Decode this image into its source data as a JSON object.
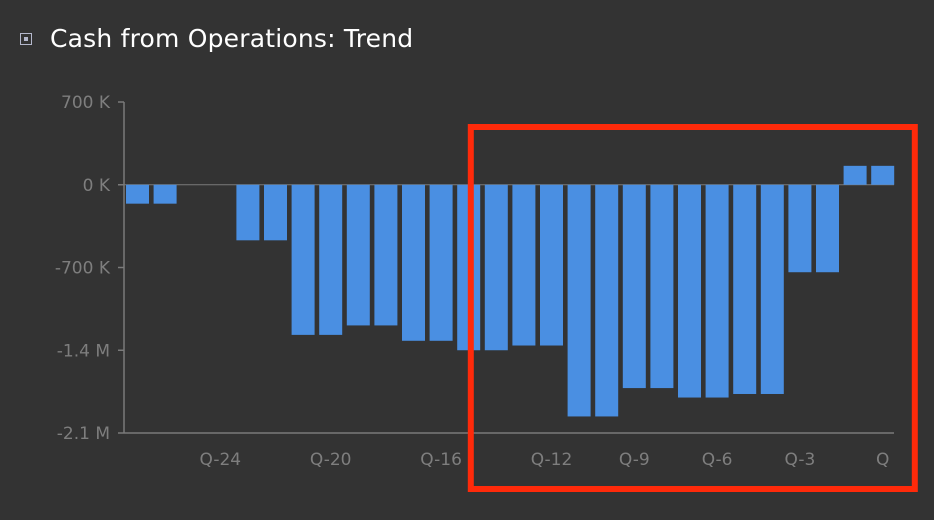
{
  "widget": {
    "title": "Cash from Operations: Trend"
  },
  "chart_data": {
    "type": "bar",
    "title": "Cash from Operations: Trend",
    "categories": [
      "Q-27",
      "Q-26",
      "Q-25",
      "Q-24",
      "Q-23",
      "Q-22",
      "Q-21",
      "Q-20",
      "Q-19",
      "Q-18",
      "Q-17",
      "Q-16",
      "Q-15",
      "Q-14",
      "Q-13",
      "Q-12",
      "Q-11",
      "Q-10",
      "Q-9",
      "Q-8",
      "Q-7",
      "Q-6",
      "Q-5",
      "Q-4",
      "Q-3",
      "Q-2",
      "Q-1",
      "Q"
    ],
    "x_tick_labels": [
      "Q-24",
      "Q-20",
      "Q-16",
      "Q-12",
      "Q-9",
      "Q-6",
      "Q-3",
      "Q"
    ],
    "values": [
      -160000,
      -160000,
      0,
      0,
      -470000,
      -470000,
      -1270000,
      -1270000,
      -1190000,
      -1190000,
      -1320000,
      -1320000,
      -1400000,
      -1400000,
      -1360000,
      -1360000,
      -1960000,
      -1960000,
      -1720000,
      -1720000,
      -1800000,
      -1800000,
      -1770000,
      -1770000,
      -740000,
      -740000,
      160000,
      160000
    ],
    "y_ticks": [
      {
        "value": 700000,
        "label": "700 K"
      },
      {
        "value": 0,
        "label": "0 K"
      },
      {
        "value": -700000,
        "label": "-700 K"
      },
      {
        "value": -1400000,
        "label": "-1.4 M"
      },
      {
        "value": -2100000,
        "label": "-2.1 M"
      }
    ],
    "ylim": [
      -2100000,
      700000
    ],
    "bar_color": "#4a8fe2",
    "axis_color": "#7a7a7a",
    "grid": false,
    "highlight_color": "#ff2a0a",
    "highlight_categories": [
      "Q-14",
      "Q"
    ]
  }
}
